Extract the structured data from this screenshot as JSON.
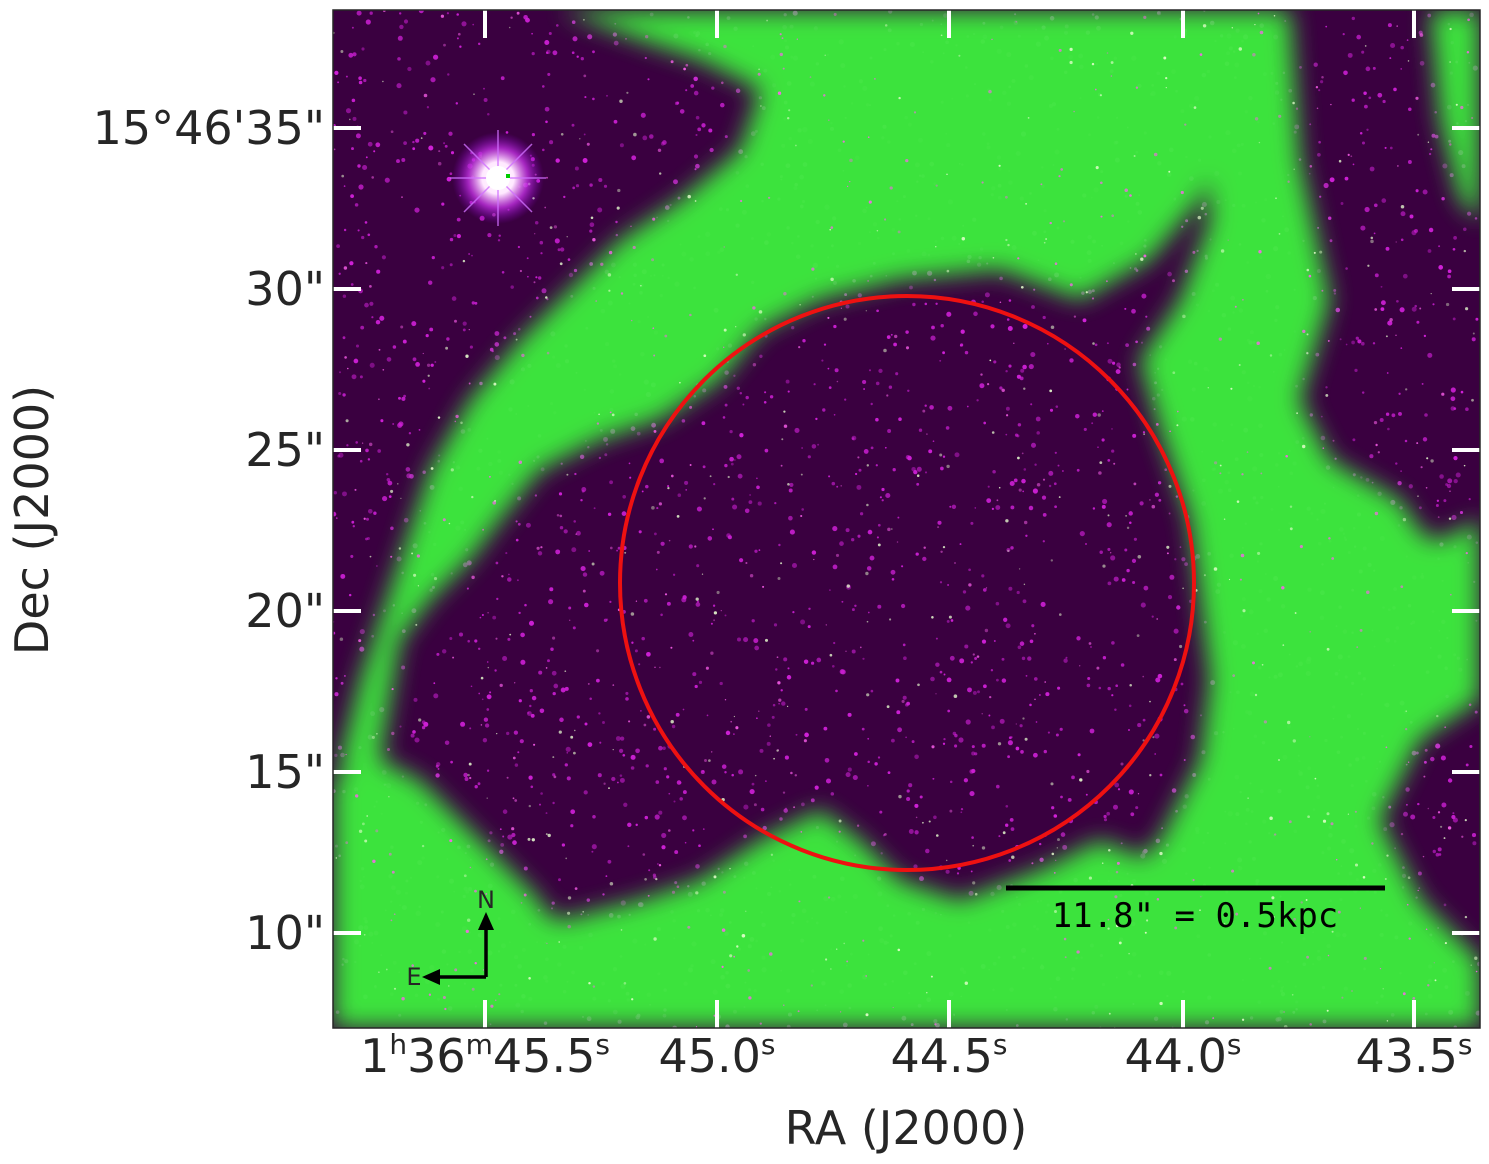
{
  "figure": {
    "x_axis_label": "RA (J2000)",
    "y_axis_label": "Dec (J2000)",
    "x_ticks": [
      {
        "base": "1",
        "h": "h",
        "mid": "36",
        "m": "m",
        "main": "45.5",
        "sup": "s"
      },
      {
        "main": "45.0",
        "sup": "s"
      },
      {
        "main": "44.5",
        "sup": "s"
      },
      {
        "main": "44.0",
        "sup": "s"
      },
      {
        "main": "43.5",
        "sup": "s"
      }
    ],
    "y_ticks": [
      "15°46'35\"",
      "30\"",
      "25\"",
      "20\"",
      "15\"",
      "10\""
    ],
    "scale_bar_label": "11.8\" = 0.5kpc",
    "compass": {
      "north": "N",
      "east": "E"
    },
    "colors": {
      "background_magenta": "#d020d8",
      "emission_green": "#3cf03c",
      "aperture_circle": "#ee1111",
      "scale_bar": "#000000",
      "tick_marks": "#ffffff"
    }
  }
}
